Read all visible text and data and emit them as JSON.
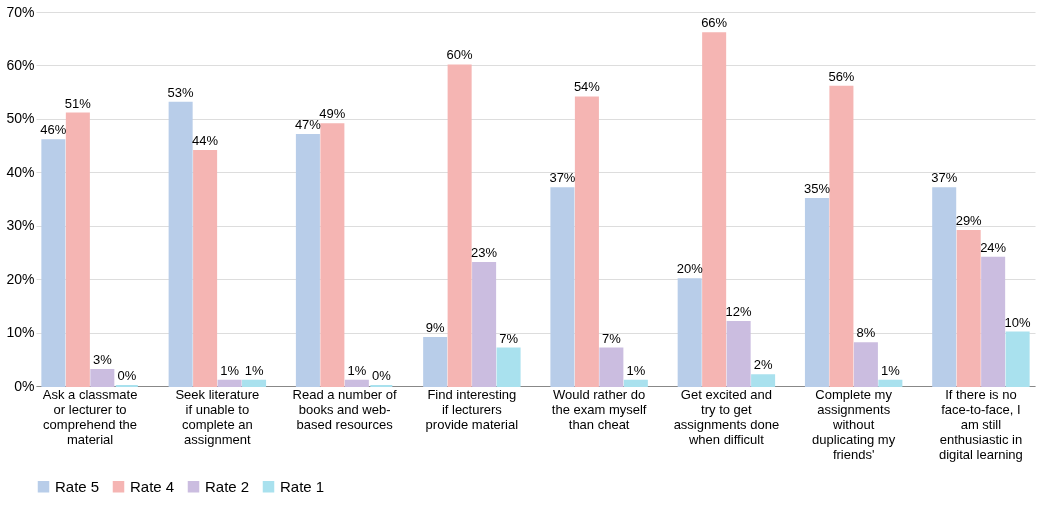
{
  "chart_data": {
    "type": "bar",
    "categories": [
      "Ask a classmate or lecturer to comprehend the material",
      "Seek literature if unable to complete an assignment",
      "Read a number of books and web-based resources",
      "Find interesting if lecturers provide material",
      "Would rather do the exam myself than cheat",
      "Get excited and try to get assignments done when difficult",
      "Complete my assignments without duplicating my friends'",
      "If there is no face-to-face, I am still enthusiastic in digital learning"
    ],
    "series": [
      {
        "name": "Rate 5",
        "color": "#b8cde9",
        "values": [
          46,
          53,
          47,
          9,
          37,
          20,
          35,
          37
        ],
        "value_labels": [
          "46%",
          "53%",
          "47%",
          "9%",
          "37%",
          "20%",
          "35%",
          "37%"
        ]
      },
      {
        "name": "Rate 4",
        "color": "#f5b5b3",
        "values": [
          51,
          44,
          49,
          60,
          54,
          66,
          56,
          29
        ],
        "value_labels": [
          "51%",
          "44%",
          "49%",
          "60%",
          "54%",
          "66%",
          "56%",
          "29%"
        ]
      },
      {
        "name": "Rate 2",
        "color": "#cbbde0",
        "values": [
          3,
          1,
          1,
          23,
          7,
          12,
          8,
          24
        ],
        "value_labels": [
          "3%",
          "1%",
          "1%",
          "23%",
          "7%",
          "12%",
          "8%",
          "24%"
        ]
      },
      {
        "name": "Rate 1",
        "color": "#a9e1ee",
        "values": [
          0,
          1,
          0,
          7,
          1,
          2,
          1,
          10
        ],
        "value_labels": [
          "0%",
          "1%",
          "0%",
          "7%",
          "1%",
          "2%",
          "1%",
          "10%"
        ]
      }
    ],
    "ylim": [
      0,
      70
    ],
    "yticks": [
      {
        "value": 0,
        "label": "0%"
      },
      {
        "value": 10,
        "label": "10%"
      },
      {
        "value": 20,
        "label": "20%"
      },
      {
        "value": 30,
        "label": "30%"
      },
      {
        "value": 40,
        "label": "40%"
      },
      {
        "value": 50,
        "label": "50%"
      },
      {
        "value": 60,
        "label": "60%"
      },
      {
        "value": 70,
        "label": "70%"
      }
    ],
    "grid": "y",
    "legend": "bottom"
  }
}
